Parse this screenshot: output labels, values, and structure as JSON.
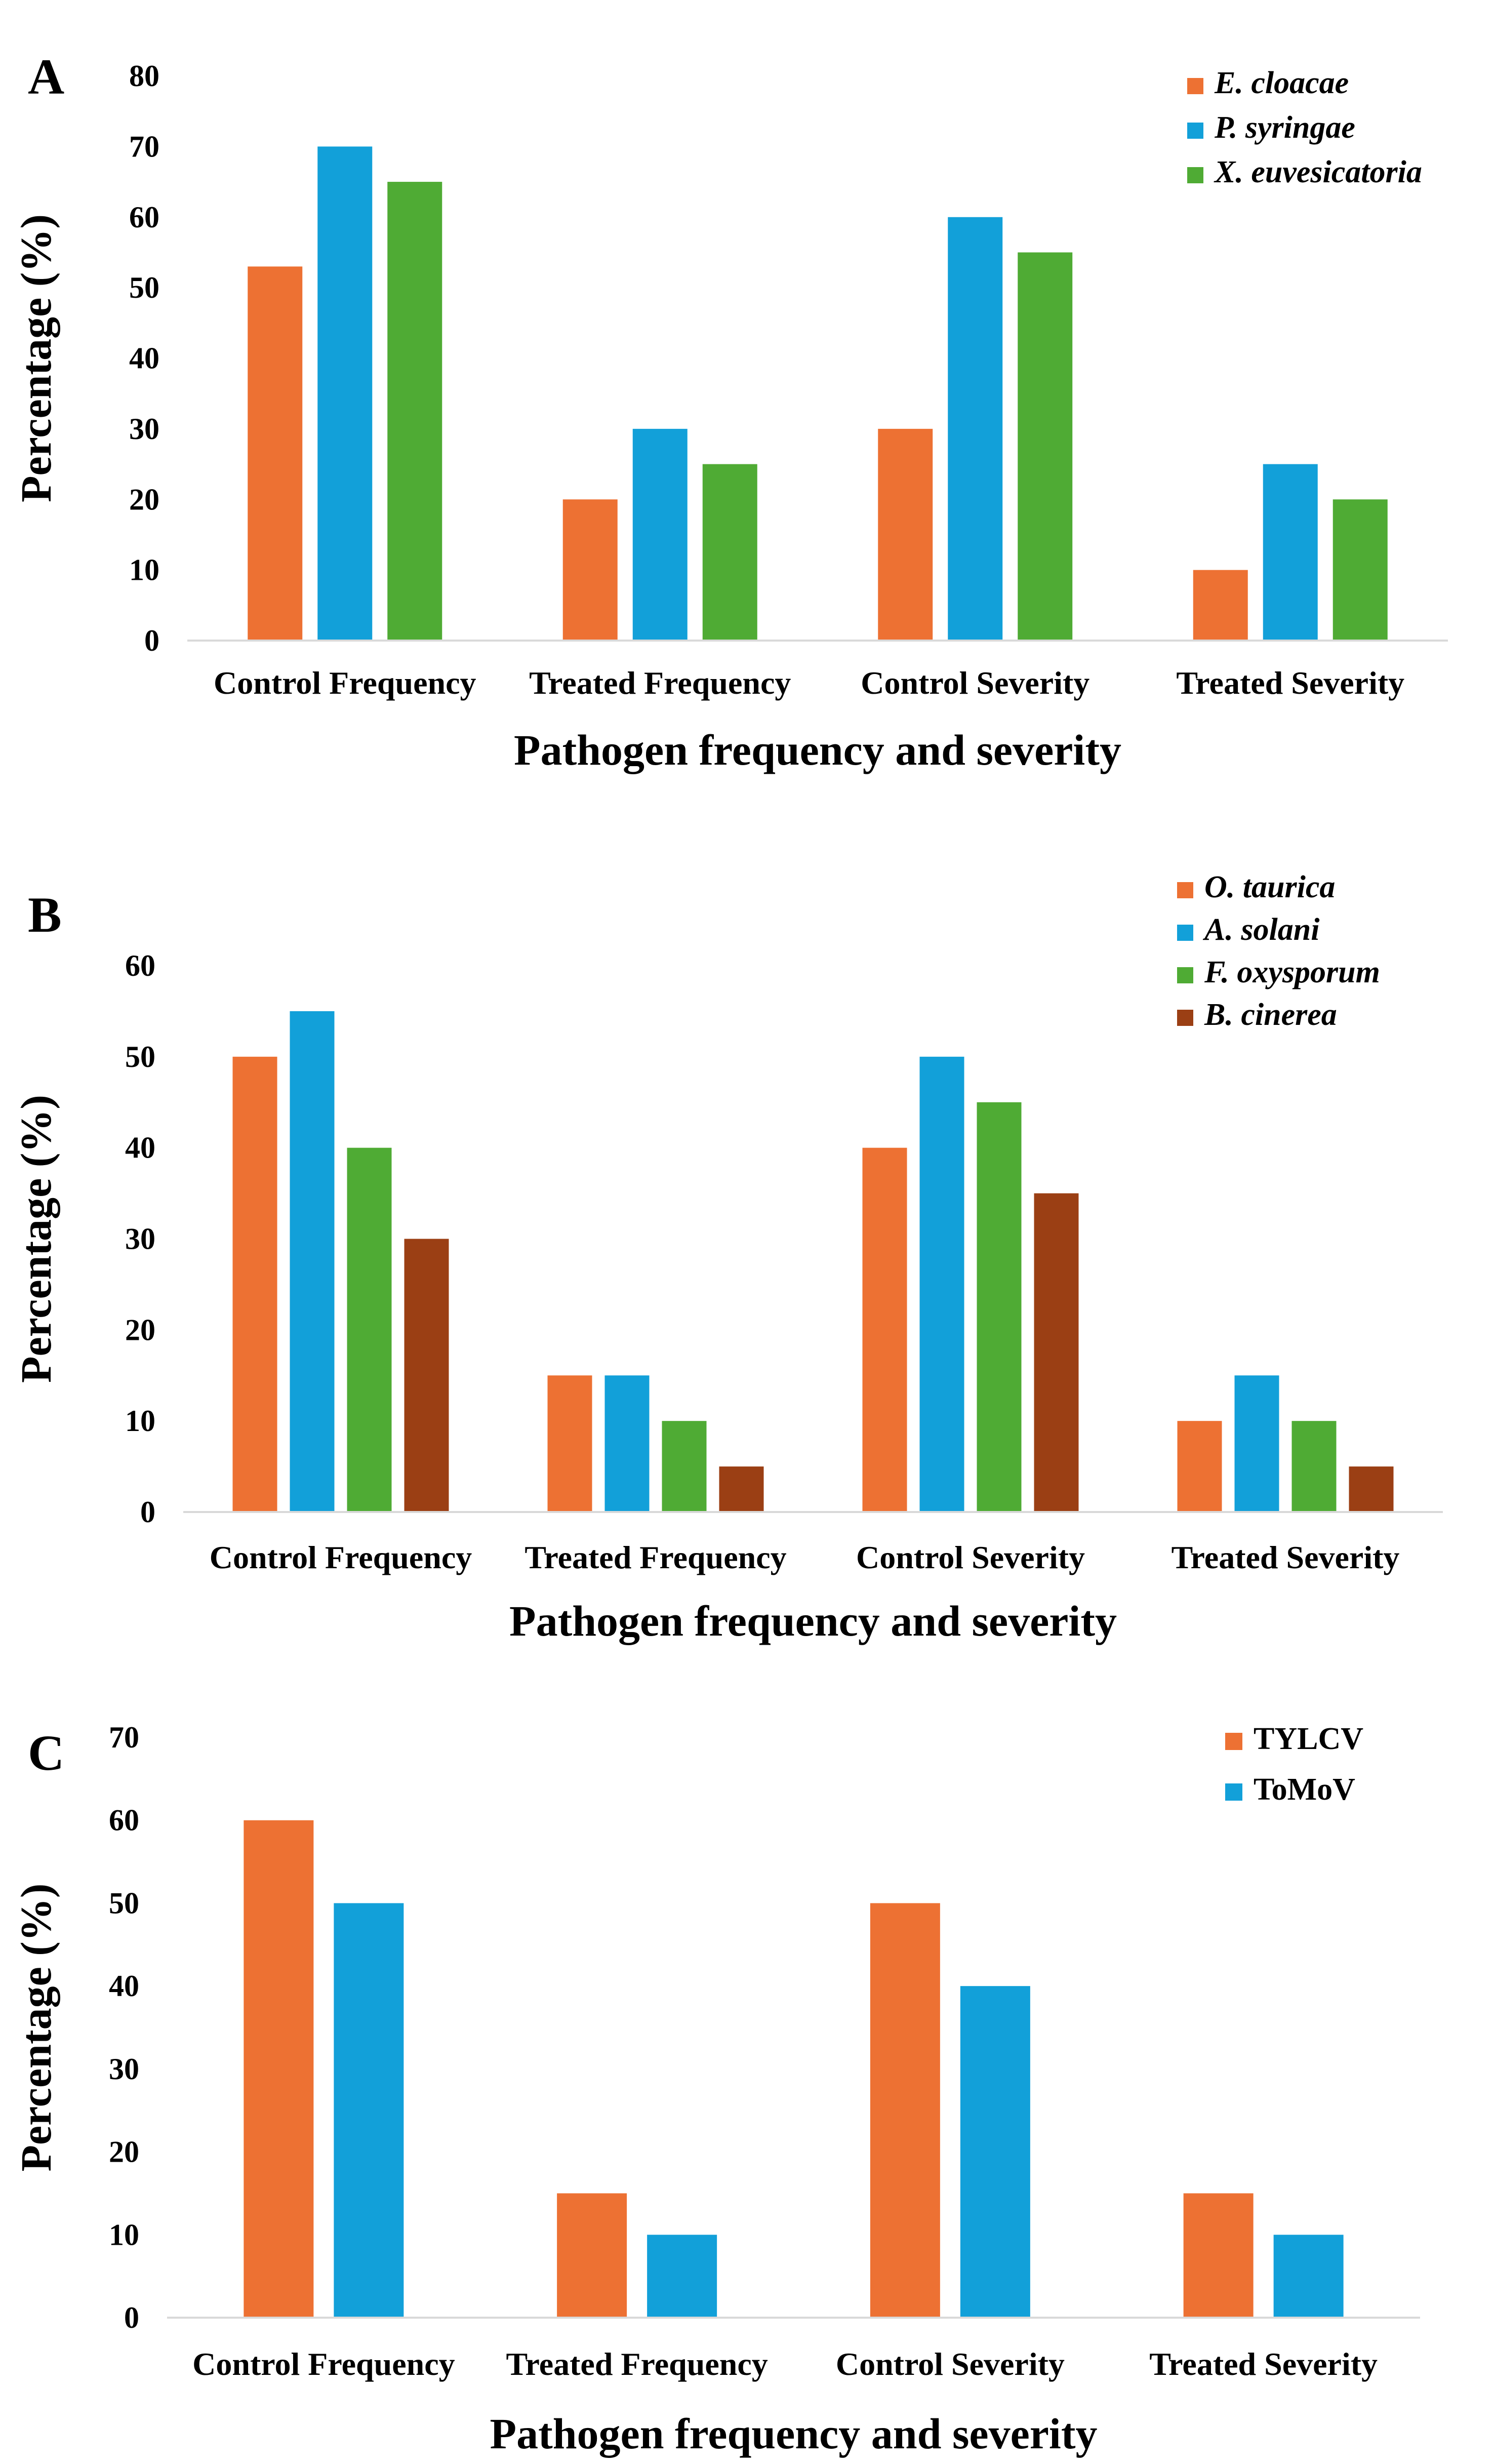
{
  "chart_data": [
    {
      "panel": "A",
      "type": "bar",
      "categories": [
        "Control Frequency",
        "Treated Frequency",
        "Control Severity",
        "Treated Severity"
      ],
      "series": [
        {
          "name": "E. cloacae",
          "color": "#ED7133",
          "values": [
            53,
            20,
            30,
            10
          ]
        },
        {
          "name": "P. syringae",
          "color": "#12A0D9",
          "values": [
            70,
            30,
            60,
            25
          ]
        },
        {
          "name": "X. euvesicatoria",
          "color": "#4FAB34",
          "values": [
            65,
            25,
            55,
            20
          ]
        }
      ],
      "italic_legend": true,
      "xlabel": "Pathogen frequency and severity",
      "ylabel": "Percentage (%)",
      "ylim": [
        0,
        80
      ],
      "yticks": [
        0,
        10,
        20,
        30,
        40,
        50,
        60,
        70,
        80
      ],
      "grid": false,
      "legend_position": "top-right"
    },
    {
      "panel": "B",
      "type": "bar",
      "categories": [
        "Control Frequency",
        "Treated Frequency",
        "Control Severity",
        "Treated Severity"
      ],
      "series": [
        {
          "name": "O. taurica",
          "color": "#ED7133",
          "values": [
            50,
            15,
            40,
            10
          ]
        },
        {
          "name": "A. solani",
          "color": "#12A0D9",
          "values": [
            55,
            15,
            50,
            15
          ]
        },
        {
          "name": "F. oxysporum",
          "color": "#4FAB34",
          "values": [
            40,
            10,
            45,
            10
          ]
        },
        {
          "name": "B. cinerea",
          "color": "#9B3F14",
          "values": [
            30,
            5,
            35,
            5
          ]
        }
      ],
      "italic_legend": true,
      "xlabel": "Pathogen frequency and severity",
      "ylabel": "Percentage (%)",
      "ylim": [
        0,
        60
      ],
      "yticks": [
        0,
        10,
        20,
        30,
        40,
        50,
        60
      ],
      "grid": false,
      "legend_position": "top-right"
    },
    {
      "panel": "C",
      "type": "bar",
      "categories": [
        "Control Frequency",
        "Treated Frequency",
        "Control Severity",
        "Treated Severity"
      ],
      "series": [
        {
          "name": "TYLCV",
          "color": "#ED7133",
          "values": [
            60,
            15,
            50,
            15
          ]
        },
        {
          "name": "ToMoV",
          "color": "#12A0D9",
          "values": [
            50,
            10,
            40,
            10
          ]
        }
      ],
      "italic_legend": false,
      "xlabel": "Pathogen frequency and severity",
      "ylabel": "Percentage (%)",
      "ylim": [
        0,
        70
      ],
      "yticks": [
        0,
        10,
        20,
        30,
        40,
        50,
        60,
        70
      ],
      "grid": false,
      "legend_position": "top-right"
    }
  ]
}
